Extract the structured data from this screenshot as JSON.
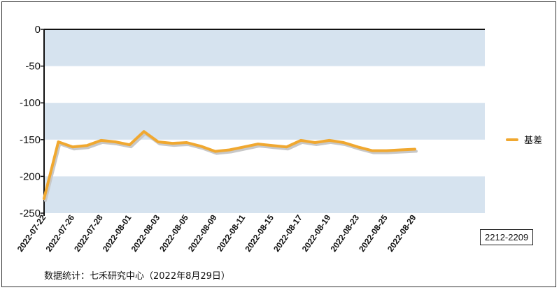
{
  "chart_data": {
    "type": "line",
    "series": [
      {
        "name": "基差",
        "color": "#F0A830",
        "values": [
          -230,
          -153,
          -160,
          -158,
          -151,
          -153,
          -157,
          -139,
          -153,
          -155,
          -154,
          -159,
          -166,
          -164,
          -160,
          -156,
          -158,
          -160,
          -151,
          -154,
          -151,
          -154,
          -160,
          -165,
          -165,
          -164,
          -163
        ]
      }
    ],
    "x_tick_labels": [
      "2022-07-22",
      "2022-07-26",
      "2022-07-28",
      "2022-08-01",
      "2022-08-03",
      "2022-08-05",
      "2022-08-09",
      "2022-08-11",
      "2022-08-15",
      "2022-08-17",
      "2022-08-19",
      "2022-08-23",
      "2022-08-25",
      "2022-08-29"
    ],
    "y_ticks": [
      0,
      -50,
      -100,
      -150,
      -200,
      -250
    ],
    "ylim": [
      -250,
      0
    ],
    "band_color": "#D6E3EF",
    "legend_position": "right",
    "title": "",
    "xlabel": "",
    "ylabel": ""
  },
  "contract_label": "2212-2209",
  "source_note": "数据统计：七禾研究中心（2022年8月29日）"
}
